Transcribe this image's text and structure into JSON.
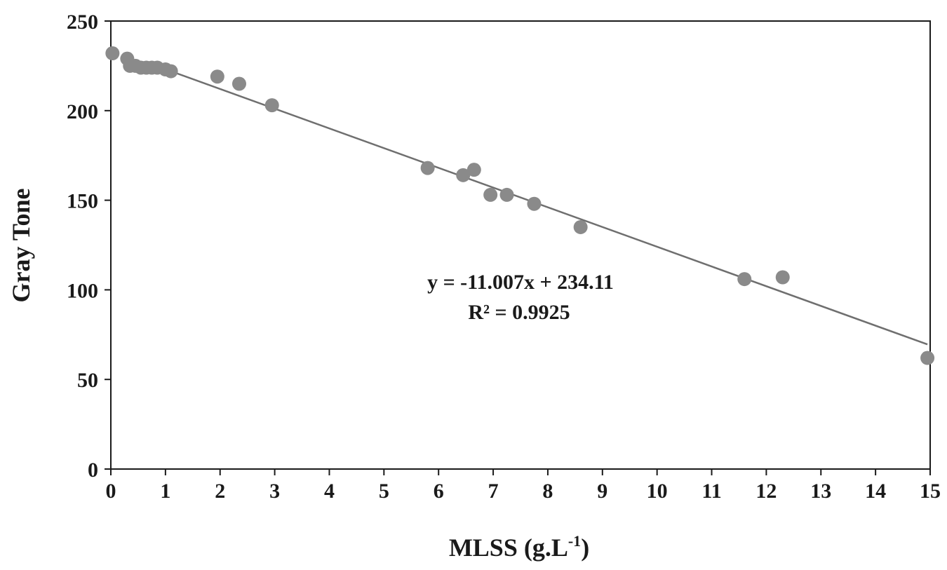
{
  "chart_data": {
    "type": "scatter",
    "xlabel": "MLSS (g.L",
    "xlabel_sup": "-1",
    "xlabel_close": ")",
    "ylabel": "Gray Tone",
    "xlim": [
      0,
      15
    ],
    "ylim": [
      0,
      250
    ],
    "x_ticks": [
      0,
      1,
      2,
      3,
      4,
      5,
      6,
      7,
      8,
      9,
      10,
      11,
      12,
      13,
      14,
      15
    ],
    "y_ticks": [
      0,
      50,
      100,
      150,
      200,
      250
    ],
    "grid": false,
    "legend": "none",
    "series": [
      {
        "points": [
          [
            0.03,
            232
          ],
          [
            0.3,
            229
          ],
          [
            0.35,
            225
          ],
          [
            0.45,
            225
          ],
          [
            0.55,
            224
          ],
          [
            0.65,
            224
          ],
          [
            0.75,
            224
          ],
          [
            0.85,
            224
          ],
          [
            1.0,
            223
          ],
          [
            1.1,
            222
          ],
          [
            1.95,
            219
          ],
          [
            2.35,
            215
          ],
          [
            2.95,
            203
          ],
          [
            5.8,
            168
          ],
          [
            6.45,
            164
          ],
          [
            6.65,
            167
          ],
          [
            6.95,
            153
          ],
          [
            7.25,
            153
          ],
          [
            7.75,
            148
          ],
          [
            8.6,
            135
          ],
          [
            11.6,
            106
          ],
          [
            12.3,
            107
          ],
          [
            14.95,
            62
          ]
        ]
      }
    ],
    "trendline": {
      "slope": -11.007,
      "intercept": 234.11,
      "x_range": [
        1.0,
        14.95
      ]
    },
    "annotations": {
      "equation": "y = -11.007x + 234.11",
      "r_squared": "R² = 0.9925"
    },
    "colors": {
      "marker": "#8a8a8a",
      "trendline": "#6f6f6f",
      "axis": "#1a1a1a"
    }
  }
}
